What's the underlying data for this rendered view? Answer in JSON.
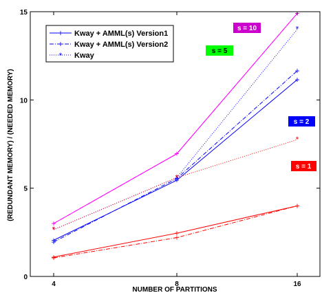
{
  "chart_data": {
    "type": "line",
    "xlabel": "NUMBER OF PARTITIONS",
    "ylabel": "(REDUNDANT MEMORY) / (NEEDED MEMORY)",
    "x": [
      4,
      8,
      16
    ],
    "x_ticks": [
      "4",
      "8",
      "16"
    ],
    "y_ticks": [
      "0",
      "5",
      "10",
      "15"
    ],
    "ylim": [
      0,
      15
    ],
    "x_scale": "log2",
    "grid": false,
    "legend_position": "top-left",
    "legend": [
      {
        "label": "Kway + AMML(s) Version1",
        "style": "solid-plus"
      },
      {
        "label": "Kway + AMML(s) Version2",
        "style": "dashdot-plus"
      },
      {
        "label": "Kway",
        "style": "dotted-star"
      }
    ],
    "groups": [
      {
        "s_label": "s = 1",
        "color": "#ff0000",
        "tag_color": "#ff0000",
        "version1": [
          1.1,
          2.45,
          4.0
        ],
        "version2": [
          1.05,
          2.2,
          4.0
        ],
        "kway": [
          null,
          null,
          null
        ]
      },
      {
        "s_label": "s = 2",
        "color": "#0000ff",
        "tag_color": "#0000ff",
        "version1": [
          2.05,
          5.45,
          11.15
        ],
        "version2": [
          1.95,
          5.55,
          11.65
        ],
        "kway": [
          2.65,
          5.6,
          7.75
        ]
      },
      {
        "s_label": "s = 5",
        "color": "#ff00ff",
        "tag_color": "#00ff00",
        "version1": [
          3.0,
          6.95,
          14.9
        ],
        "version2": [
          3.0,
          6.95,
          14.9
        ],
        "kway": [
          null,
          null,
          null
        ]
      },
      {
        "s_label": "s = 10",
        "color": "#ff00ff",
        "tag_color": "#cc00cc",
        "version1": [
          3.0,
          6.95,
          14.9
        ],
        "version2": [
          3.0,
          6.95,
          14.9
        ],
        "kway": [
          null,
          null,
          14.0
        ]
      }
    ],
    "kway_extra": [
      {
        "color": "#0000ff",
        "values": [
          2.65,
          5.6,
          14.0
        ]
      },
      {
        "color": "#ff0000",
        "values": [
          2.65,
          5.6,
          7.75
        ]
      }
    ]
  }
}
